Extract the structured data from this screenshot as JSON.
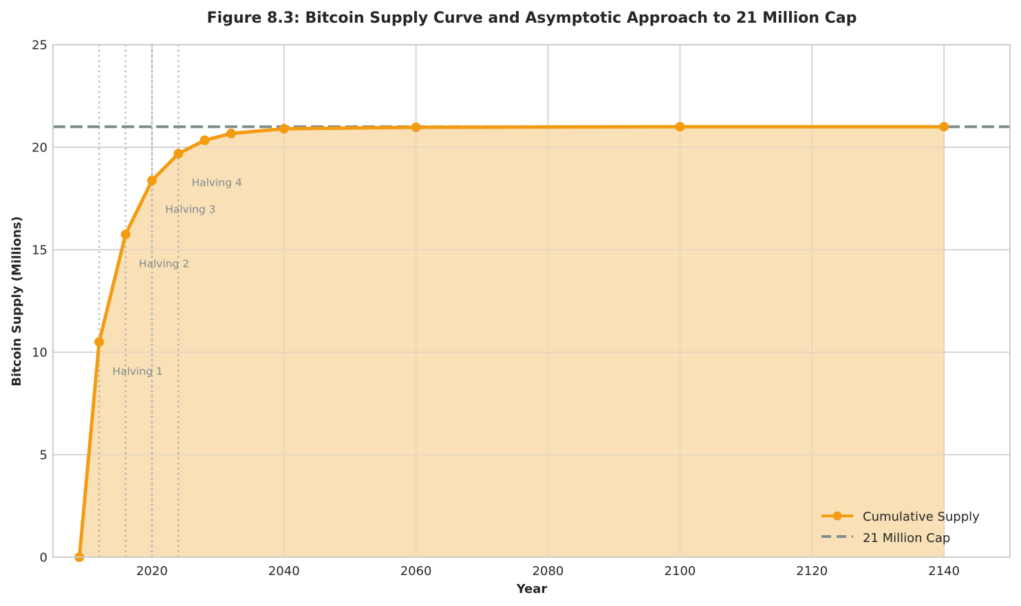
{
  "chart_data": {
    "type": "line",
    "title": "Figure 8.3: Bitcoin Supply Curve and Asymptotic Approach to 21 Million Cap",
    "xlabel": "Year",
    "ylabel": "Bitcoin Supply (Millions)",
    "xlim": [
      2005,
      2150
    ],
    "ylim": [
      0,
      25
    ],
    "xticks": [
      2020,
      2040,
      2060,
      2080,
      2100,
      2120,
      2140
    ],
    "yticks": [
      0,
      5,
      10,
      15,
      20,
      25
    ],
    "grid": true,
    "legend_position": "lower right",
    "series": [
      {
        "name": "Cumulative Supply",
        "style": "line-with-markers, filled area below",
        "color": "#f39c12",
        "fill_color": "#f9e0b7",
        "x": [
          2009,
          2012,
          2016,
          2020,
          2024,
          2028,
          2032,
          2040,
          2060,
          2100,
          2140
        ],
        "values": [
          0,
          10.5,
          15.75,
          18.375,
          19.6875,
          20.34,
          20.67,
          20.9,
          20.97,
          21.0,
          21.0
        ]
      },
      {
        "name": "21 Million Cap",
        "style": "dashed horizontal line",
        "color": "#7f8c8d",
        "value": 21
      }
    ],
    "halvings": [
      {
        "label": "Halving 1",
        "year": 2012,
        "label_x": 2014,
        "label_y": 9.1
      },
      {
        "label": "Halving 2",
        "year": 2016,
        "label_x": 2018,
        "label_y": 14.35
      },
      {
        "label": "Halving 3",
        "year": 2020,
        "label_x": 2022,
        "label_y": 17.0
      },
      {
        "label": "Halving 4",
        "year": 2024,
        "label_x": 2026,
        "label_y": 18.3
      }
    ],
    "annotation_color": "#7f8c8d"
  }
}
